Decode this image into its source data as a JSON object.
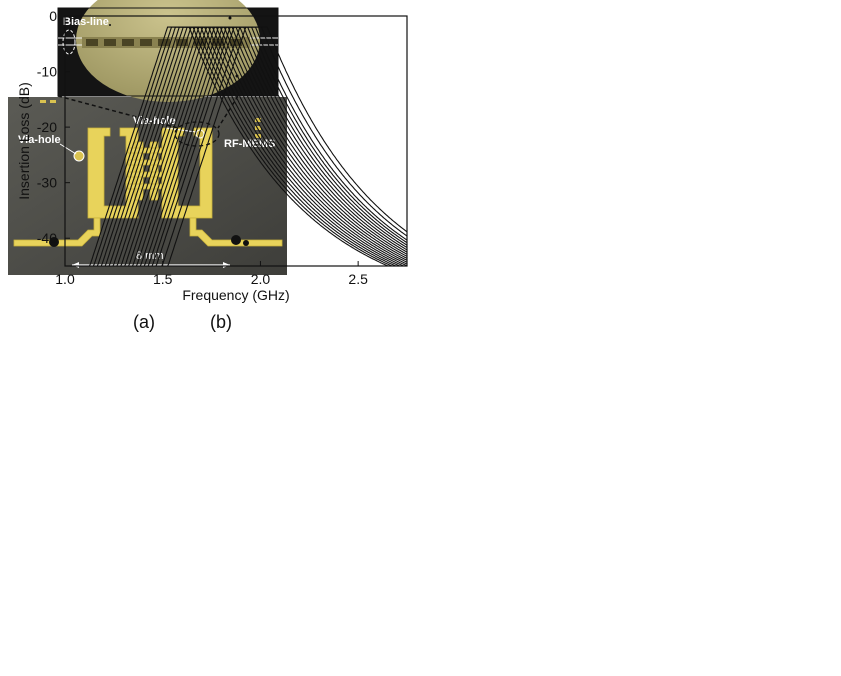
{
  "figure_a": {
    "caption": "(a)",
    "labels": {
      "bias_line": "Bias-line",
      "via_hole_left": "Via-hole",
      "via_hole_right": "Via-hole",
      "rf_mems": "RF-MEMS",
      "scale": "8 mm"
    },
    "colors": {
      "substrate": "#4e4e49",
      "metal": "#e5cf57",
      "inset_bg": "#141414",
      "inset_chip": "#b9b27e"
    }
  },
  "figure_b": {
    "caption": "(b)"
  },
  "chart_data": {
    "type": "line",
    "title": "",
    "xlabel": "Frequency (GHz)",
    "ylabel": "Insertion Loss (dB)",
    "xlim": [
      1.0,
      2.75
    ],
    "ylim": [
      -45,
      0
    ],
    "xticks": [
      1.0,
      1.5,
      2.0,
      2.5
    ],
    "xtick_labels": [
      "1.0",
      "1.5",
      "2.0",
      "2.5"
    ],
    "yticks": [
      0,
      -10,
      -20,
      -30,
      -40
    ],
    "ytick_labels": [
      "0",
      "-10",
      "-20",
      "-30",
      "-40"
    ],
    "grid": false,
    "legend": "none",
    "series_shape": {
      "peak_loss_db": -2.0,
      "passband_half_width_ghz": 0.055,
      "lower_skirt_slope_db_per_ghz": 108,
      "upper_skirt_depth_db": 52,
      "upper_skirt_scale_ghz": 0.58
    },
    "series": [
      {
        "center": 1.58
      },
      {
        "center": 1.6
      },
      {
        "center": 1.62
      },
      {
        "center": 1.64
      },
      {
        "center": 1.66
      },
      {
        "center": 1.68
      },
      {
        "center": 1.7
      },
      {
        "center": 1.72
      },
      {
        "center": 1.74
      },
      {
        "center": 1.76
      },
      {
        "center": 1.78
      },
      {
        "center": 1.8
      },
      {
        "center": 1.82
      },
      {
        "center": 1.84
      },
      {
        "center": 1.86
      },
      {
        "center": 1.88
      },
      {
        "center": 1.9
      },
      {
        "center": 1.92
      },
      {
        "center": 1.95
      },
      {
        "center": 1.98
      }
    ]
  }
}
